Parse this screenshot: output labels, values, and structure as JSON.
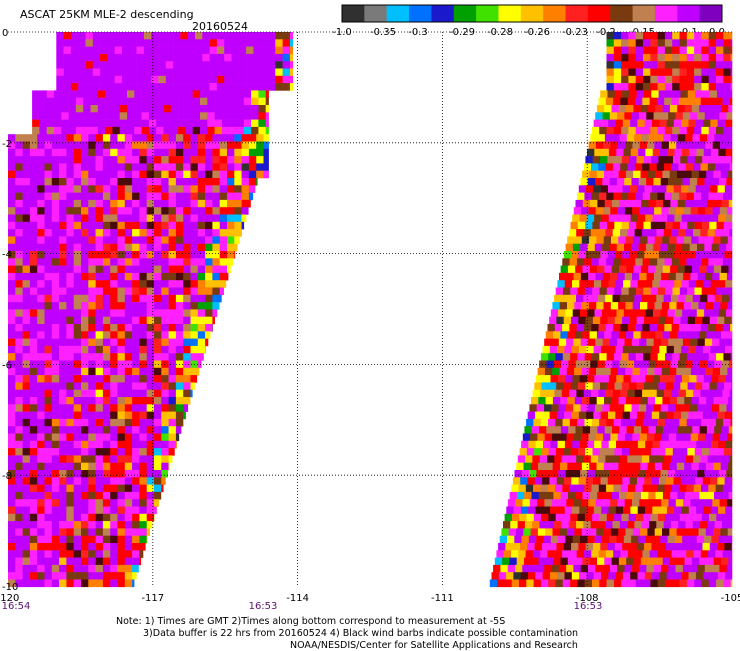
{
  "header": {
    "title": "ASCAT 25KM MLE-2 descending",
    "date": "20160524"
  },
  "colorbar": {
    "colors": [
      "#303030",
      "#7a7a7a",
      "#00bfff",
      "#0070ff",
      "#1a1acc",
      "#00a000",
      "#40e000",
      "#ffff00",
      "#ffc000",
      "#ff7f00",
      "#ff2020",
      "#ff0000",
      "#7a3a10",
      "#c08050",
      "#ff20ff",
      "#c000ff",
      "#8000c0"
    ],
    "labels": [
      "-1.0",
      "-0.35",
      "-0.3",
      "-0.29",
      "-0.28",
      "-0.26",
      "-0.23",
      "-0.2",
      "-0.15",
      "-0.1",
      "0.0"
    ]
  },
  "map": {
    "x_ticks": [
      "-120",
      "-117",
      "-114",
      "-111",
      "-108",
      "-105"
    ],
    "y_ticks": [
      "0",
      "-2",
      "-4",
      "-6",
      "-8",
      "-10"
    ],
    "times": [
      "16:54",
      "16:53",
      "16:53"
    ]
  },
  "notes": {
    "line1": "Note: 1) Times are GMT 2)Times along bottom correspond to measurement at -5S",
    "line2": "3)Data buffer is 22 hrs from 20160524 4) Black wind barbs indicate possible contamination",
    "line3": "NOAA/NESDIS/Center for Satellite Applications and Research"
  }
}
